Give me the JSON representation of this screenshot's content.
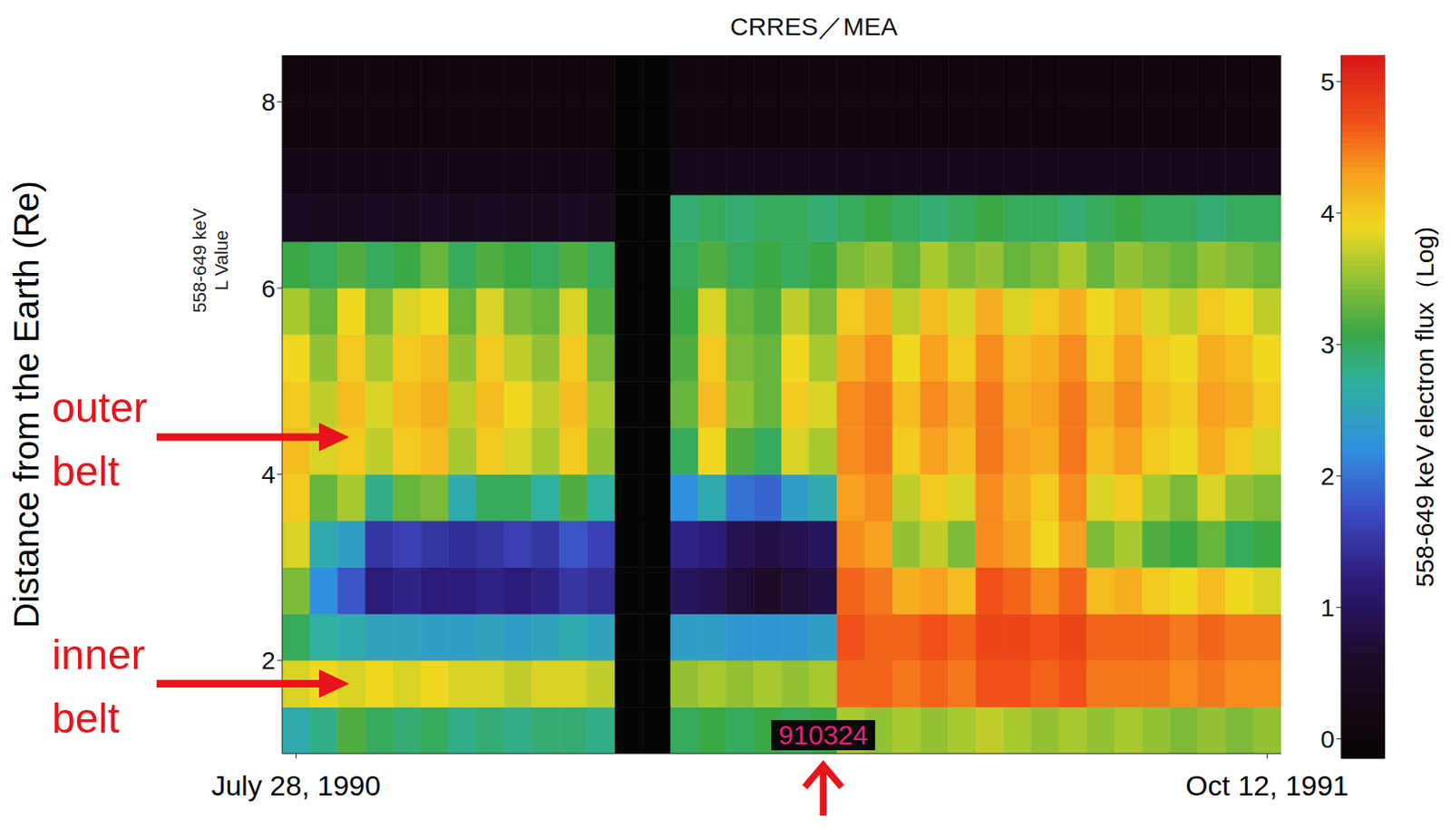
{
  "chart_data": {
    "type": "heatmap",
    "title": "CRRES／MEA",
    "y_label": "Distance from the Earth (Re)",
    "y_label_note": [
      "558-649 keV",
      "L Value"
    ],
    "categories": [
      "July 28, 1990",
      null,
      null,
      null,
      null,
      null,
      null,
      null,
      null,
      null,
      null,
      null,
      null,
      null,
      null,
      null,
      null,
      null,
      null,
      null,
      null,
      null,
      null,
      null,
      null,
      null,
      null,
      null,
      null,
      null,
      null,
      null,
      null,
      null,
      null,
      "Oct 12, 1991"
    ],
    "ylim": [
      1,
      8.5
    ],
    "yticks": [
      2,
      4,
      6,
      8
    ],
    "y_bins": [
      1,
      1.5,
      2,
      2.5,
      3,
      3.5,
      4,
      4.5,
      5,
      5.5,
      6,
      6.5,
      7,
      7.5,
      8,
      8.5
    ],
    "cells": [
      [
        2.6,
        2.8,
        3.2,
        3.0,
        2.9,
        3.0,
        2.8,
        2.9,
        2.8,
        2.9,
        2.9,
        2.8,
        null,
        null,
        3.0,
        3.1,
        3.0,
        3.1,
        3.0,
        3.1,
        3.6,
        3.5,
        3.6,
        3.5,
        3.6,
        3.7,
        3.6,
        3.5,
        3.6,
        3.5,
        3.6,
        3.5,
        3.4,
        3.5,
        3.4,
        3.5
      ],
      [
        3.8,
        3.9,
        3.8,
        3.9,
        3.8,
        3.9,
        3.8,
        3.8,
        3.7,
        3.8,
        3.8,
        3.7,
        null,
        null,
        3.5,
        3.6,
        3.5,
        3.6,
        3.5,
        3.6,
        4.6,
        4.6,
        4.5,
        4.6,
        4.5,
        4.7,
        4.7,
        4.6,
        4.7,
        4.5,
        4.5,
        4.5,
        4.4,
        4.5,
        4.4,
        4.4
      ],
      [
        3.0,
        2.7,
        2.6,
        2.5,
        2.5,
        2.4,
        2.4,
        2.5,
        2.4,
        2.5,
        2.6,
        2.5,
        null,
        null,
        2.4,
        2.4,
        2.3,
        2.3,
        2.3,
        2.4,
        4.7,
        4.6,
        4.6,
        4.7,
        4.6,
        4.8,
        4.8,
        4.7,
        4.8,
        4.6,
        4.6,
        4.6,
        4.5,
        4.6,
        4.5,
        4.5
      ],
      [
        3.4,
        2.2,
        1.8,
        1.2,
        1.3,
        1.2,
        1.2,
        1.3,
        1.2,
        1.3,
        1.5,
        1.4,
        null,
        null,
        1.0,
        0.9,
        0.7,
        0.6,
        0.7,
        0.8,
        4.6,
        4.5,
        4.2,
        4.3,
        4.1,
        4.7,
        4.6,
        4.4,
        4.6,
        4.1,
        4.2,
        4.0,
        3.9,
        4.1,
        3.9,
        3.8
      ],
      [
        3.8,
        2.6,
        2.4,
        1.5,
        1.6,
        1.5,
        1.4,
        1.5,
        1.6,
        1.5,
        1.8,
        1.6,
        null,
        null,
        1.3,
        1.2,
        0.9,
        0.8,
        0.9,
        1.0,
        4.4,
        4.3,
        3.5,
        3.7,
        3.4,
        4.4,
        4.3,
        3.9,
        4.3,
        3.4,
        3.6,
        3.2,
        3.1,
        3.3,
        3.0,
        3.1
      ],
      [
        4.0,
        3.3,
        3.6,
        2.8,
        3.3,
        3.4,
        2.6,
        3.0,
        3.0,
        2.7,
        3.2,
        2.7,
        null,
        null,
        2.2,
        2.6,
        2.0,
        1.9,
        2.4,
        2.6,
        4.3,
        4.4,
        3.7,
        4.0,
        3.8,
        4.4,
        4.2,
        4.0,
        4.4,
        3.8,
        4.0,
        3.6,
        3.4,
        3.8,
        3.5,
        3.4
      ],
      [
        4.1,
        3.8,
        4.0,
        3.7,
        4.0,
        4.1,
        3.6,
        4.0,
        3.8,
        3.6,
        4.0,
        3.5,
        null,
        null,
        3.0,
        3.9,
        3.2,
        3.0,
        3.8,
        3.6,
        4.4,
        4.5,
        4.0,
        4.3,
        4.1,
        4.5,
        4.3,
        4.2,
        4.5,
        4.1,
        4.3,
        4.0,
        3.9,
        4.2,
        4.0,
        3.8
      ],
      [
        4.0,
        3.7,
        4.1,
        3.8,
        4.1,
        4.2,
        3.7,
        4.1,
        3.9,
        3.7,
        4.1,
        3.6,
        null,
        null,
        3.3,
        4.1,
        3.5,
        3.3,
        4.0,
        3.8,
        4.4,
        4.5,
        4.1,
        4.4,
        4.2,
        4.5,
        4.2,
        4.3,
        4.5,
        4.2,
        4.4,
        4.1,
        4.0,
        4.3,
        4.2,
        4.0
      ],
      [
        3.9,
        3.5,
        4.0,
        3.6,
        4.0,
        4.1,
        3.5,
        4.0,
        3.7,
        3.5,
        4.0,
        3.4,
        null,
        null,
        3.2,
        4.0,
        3.4,
        3.3,
        3.9,
        3.6,
        4.2,
        4.4,
        3.9,
        4.3,
        4.0,
        4.4,
        4.1,
        4.2,
        4.4,
        4.0,
        4.3,
        4.0,
        3.9,
        4.2,
        4.1,
        3.9
      ],
      [
        3.6,
        3.3,
        3.9,
        3.4,
        3.8,
        3.9,
        3.3,
        3.8,
        3.4,
        3.3,
        3.8,
        3.2,
        null,
        null,
        3.1,
        3.8,
        3.3,
        3.2,
        3.7,
        3.4,
        4.0,
        4.2,
        3.7,
        4.1,
        3.8,
        4.2,
        3.8,
        4.0,
        4.2,
        3.9,
        4.1,
        3.8,
        3.7,
        4.0,
        3.9,
        3.7
      ],
      [
        3.1,
        3.0,
        3.2,
        3.0,
        3.1,
        3.3,
        3.0,
        3.2,
        3.1,
        3.0,
        3.2,
        3.0,
        null,
        null,
        3.0,
        3.2,
        3.0,
        3.1,
        3.0,
        3.1,
        3.4,
        3.5,
        3.3,
        3.6,
        3.4,
        3.5,
        3.3,
        3.4,
        3.6,
        3.3,
        3.5,
        3.4,
        3.3,
        3.5,
        3.4,
        3.3
      ],
      [
        0.5,
        0.4,
        0.4,
        0.5,
        0.4,
        0.5,
        0.4,
        0.5,
        0.4,
        0.4,
        0.5,
        0.4,
        null,
        null,
        2.9,
        3.0,
        2.9,
        3.0,
        3.0,
        2.9,
        3.0,
        3.1,
        3.0,
        2.9,
        3.0,
        3.1,
        3.0,
        3.0,
        2.9,
        3.0,
        3.1,
        3.0,
        3.0,
        2.9,
        3.0,
        3.0
      ],
      [
        0.2,
        0.2,
        0.2,
        0.2,
        0.2,
        0.2,
        0.2,
        0.2,
        0.2,
        0.2,
        0.2,
        0.2,
        null,
        null,
        0.3,
        0.3,
        0.3,
        0.3,
        0.3,
        0.3,
        0.3,
        0.3,
        0.3,
        0.3,
        0.3,
        0.3,
        0.3,
        0.3,
        0.3,
        0.3,
        0.3,
        0.3,
        0.3,
        0.3,
        0.3,
        0.3
      ],
      [
        0.1,
        0.1,
        0.1,
        0.1,
        0.1,
        0.1,
        0.1,
        0.1,
        0.1,
        0.1,
        0.1,
        0.1,
        null,
        null,
        0.1,
        0.1,
        0.1,
        0.1,
        0.1,
        0.1,
        0.1,
        0.1,
        0.1,
        0.1,
        0.1,
        0.1,
        0.1,
        0.1,
        0.1,
        0.1,
        0.1,
        0.1,
        0.1,
        0.1,
        0.1,
        0.1
      ],
      [
        0.1,
        0.1,
        0.1,
        0.1,
        0.1,
        0.1,
        0.1,
        0.1,
        0.1,
        0.1,
        0.1,
        0.1,
        null,
        null,
        0.1,
        0.1,
        0.1,
        0.1,
        0.1,
        0.1,
        0.1,
        0.1,
        0.1,
        0.1,
        0.1,
        0.1,
        0.1,
        0.1,
        0.1,
        0.1,
        0.1,
        0.1,
        0.1,
        0.1,
        0.1,
        0.1
      ]
    ],
    "colorbar_label": "558-649 keV electron flux（Log)",
    "colorbar_lim": [
      -0.15,
      5.2
    ],
    "colorbar_ticks": [
      0,
      1,
      2,
      3,
      4,
      5
    ],
    "annotations": [
      {
        "text": "outer belt",
        "y": 4.4
      },
      {
        "text": "inner belt",
        "y": 1.75
      },
      {
        "text": "910324",
        "column": 19
      }
    ]
  }
}
